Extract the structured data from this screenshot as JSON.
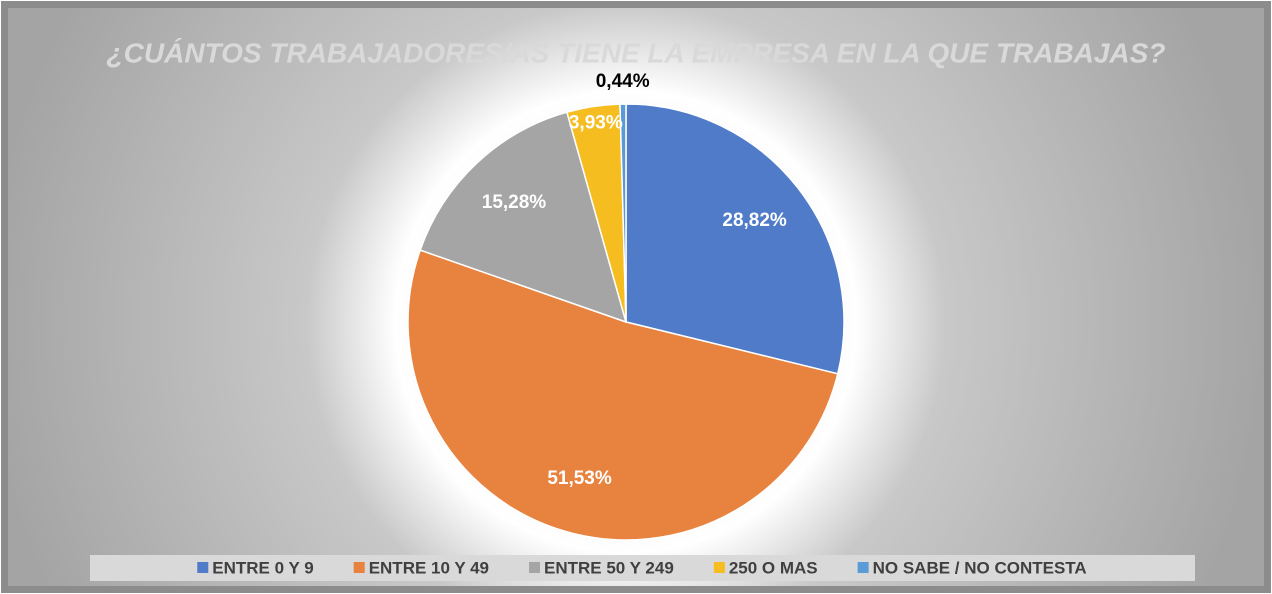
{
  "chart_data": {
    "type": "pie",
    "title": "¿CUÁNTOS TRABAJADORES/AS TIENE LA EMPRESA EN LA QUE TRABAJAS?",
    "categories": [
      "ENTRE 0 Y 9",
      "ENTRE 10 Y 49",
      "ENTRE 50 Y 249",
      "250 O MAS",
      "NO SABE / NO CONTESTA"
    ],
    "values": [
      28.82,
      51.53,
      15.28,
      3.93,
      0.44
    ],
    "value_labels": [
      "28,82%",
      "51,53%",
      "15,28%",
      "3,93%",
      "0,44%"
    ],
    "colors": [
      "#4f7bc8",
      "#e8833f",
      "#a5a5a5",
      "#f5bd1f",
      "#5b9bd5"
    ],
    "legend": "bottom"
  }
}
